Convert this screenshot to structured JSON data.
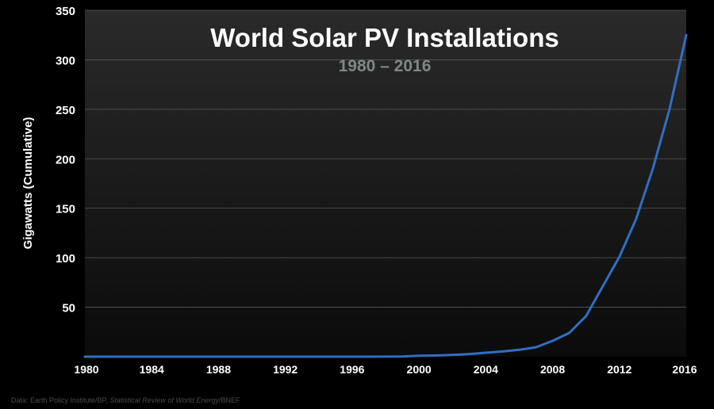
{
  "chart_data": {
    "type": "line",
    "title": "World Solar PV Installations",
    "subtitle": "1980 – 2016",
    "ylabel": "Gigawatts (Cumulative)",
    "xlabel": "",
    "xlim": [
      1980,
      2016
    ],
    "ylim": [
      0,
      350
    ],
    "x_ticks": [
      1980,
      1984,
      1988,
      1992,
      1996,
      2000,
      2004,
      2008,
      2012,
      2016
    ],
    "y_ticks": [
      50,
      100,
      150,
      200,
      250,
      300,
      350
    ],
    "grid": true,
    "series": [
      {
        "color": "#2f6fc4",
        "x": [
          1980,
          1981,
          1982,
          1983,
          1984,
          1985,
          1986,
          1987,
          1988,
          1989,
          1990,
          1991,
          1992,
          1993,
          1994,
          1995,
          1996,
          1997,
          1998,
          1999,
          2000,
          2001,
          2002,
          2003,
          2004,
          2005,
          2006,
          2007,
          2008,
          2009,
          2010,
          2011,
          2012,
          2013,
          2014,
          2015,
          2016
        ],
        "values": [
          0,
          0,
          0,
          0,
          0,
          0,
          0,
          0,
          0,
          0,
          0,
          0,
          0,
          0,
          0,
          0,
          0,
          0,
          0.1,
          0.2,
          1,
          1.2,
          1.8,
          2.6,
          4,
          5.3,
          7,
          9.5,
          16,
          24,
          41,
          71,
          101,
          139,
          190,
          250,
          325
        ]
      }
    ]
  },
  "source": {
    "prefix": "Data: Earth Policy Institute/BP, ",
    "italic": "Statistical Review of World Energy",
    "suffix": "/BNEF"
  },
  "colors": {
    "background": "#000000",
    "plot_top": "#2a2a2a",
    "plot_bottom": "#0b0b0b",
    "title": "#ffffff",
    "subtitle": "#7b8a82",
    "line": "#2f6fc4",
    "grid": "#5a5a5a",
    "source": "#4a4a4a"
  }
}
